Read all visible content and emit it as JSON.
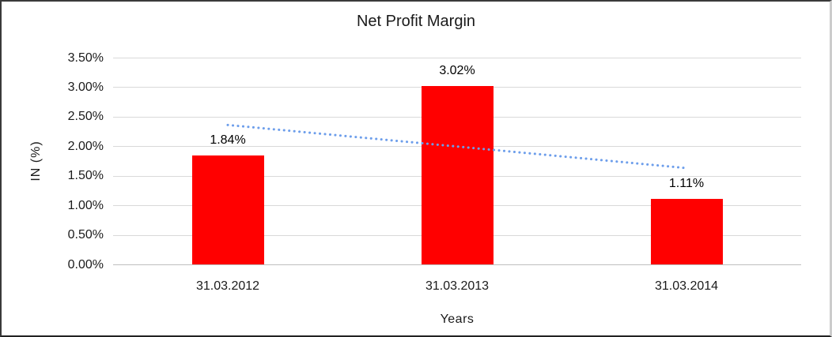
{
  "chart_data": {
    "type": "bar",
    "title": "Net Profit Margin",
    "xlabel": "Years",
    "ylabel": "IN (%)",
    "categories": [
      "31.03.2012",
      "31.03.2013",
      "31.03.2014"
    ],
    "values": [
      1.84,
      3.02,
      1.11
    ],
    "data_labels": [
      "1.84%",
      "3.02%",
      "1.11%"
    ],
    "y_ticks": [
      "3.50%",
      "3.00%",
      "2.50%",
      "2.00%",
      "1.50%",
      "1.00%",
      "0.50%",
      "0.00%"
    ],
    "ylim": [
      0,
      3.5
    ],
    "grid": true,
    "legend": "none",
    "bar_color": "#FF0000",
    "gridline_color": "#d9d9d9",
    "trendline": {
      "type": "linear",
      "style": "dotted",
      "color": "#6D9EEB",
      "start_value": 2.36,
      "end_value": 1.63
    }
  }
}
